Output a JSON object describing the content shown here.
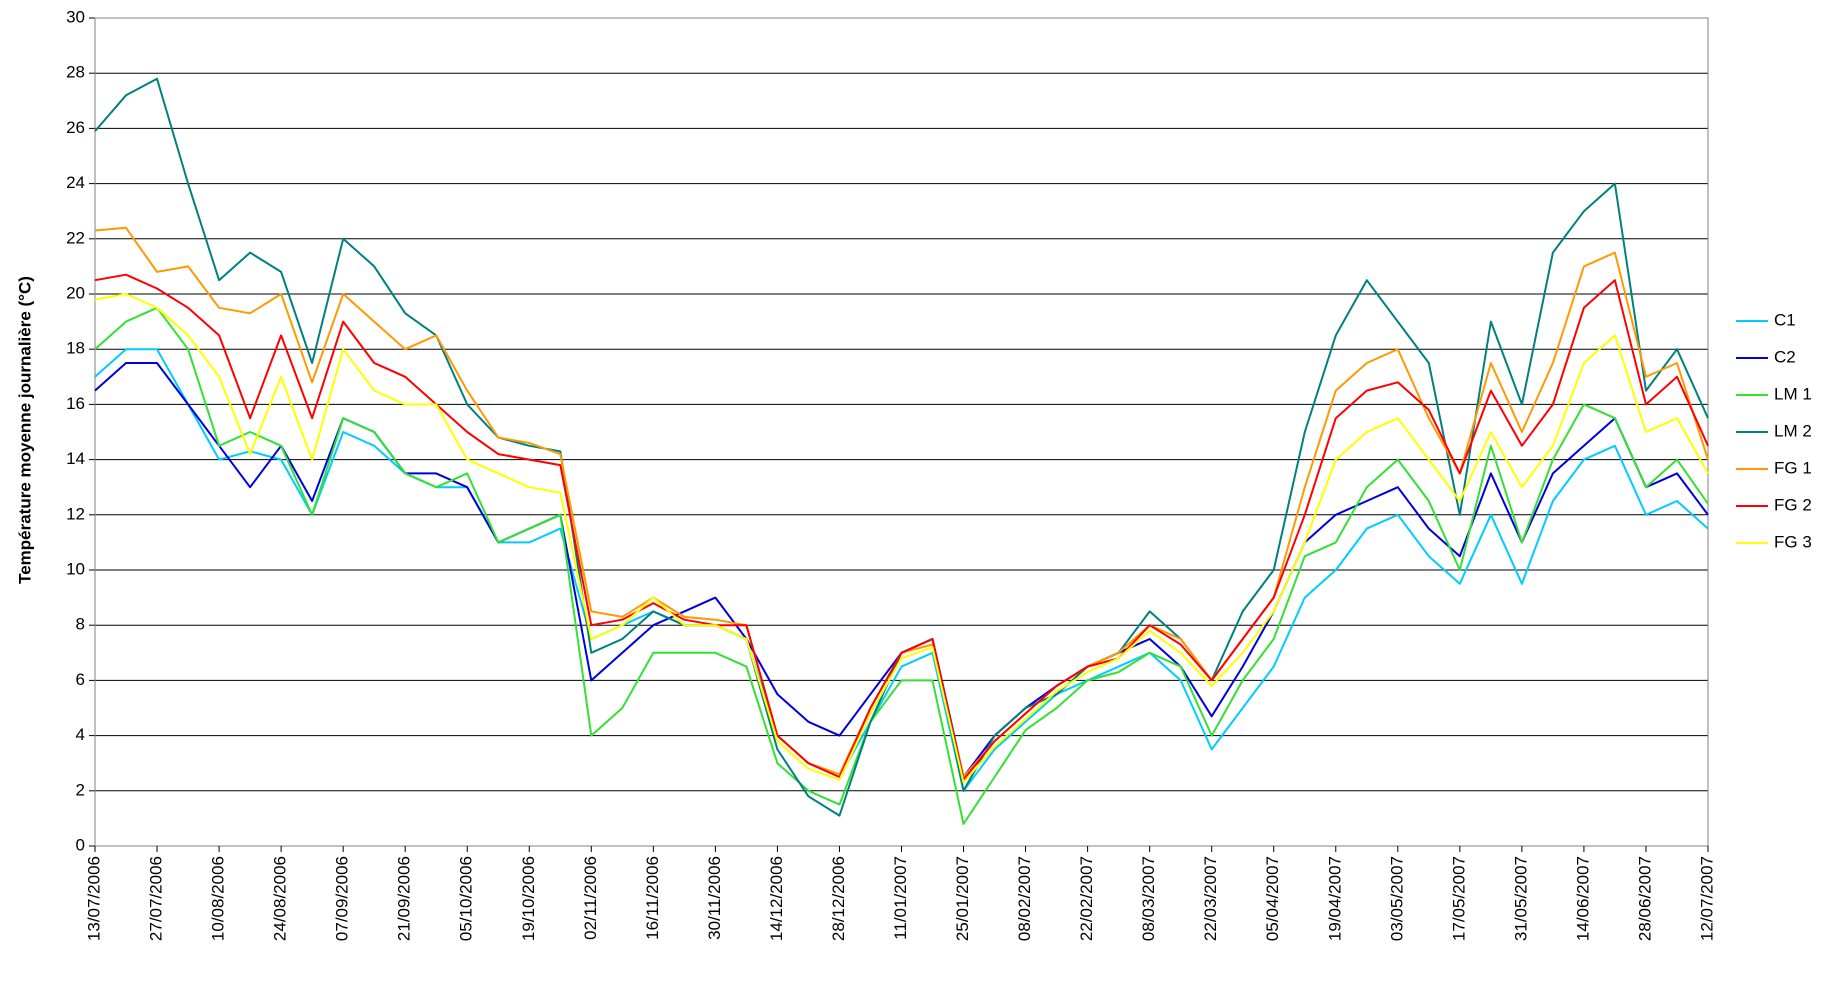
{
  "chart_data": {
    "type": "line",
    "y_label": "Température moyenne journalière (°C)",
    "x": [
      "13/07/2006",
      "20/07/2006",
      "27/07/2006",
      "03/08/2006",
      "10/08/2006",
      "17/08/2006",
      "24/08/2006",
      "31/08/2006",
      "07/09/2006",
      "14/09/2006",
      "21/09/2006",
      "28/09/2006",
      "05/10/2006",
      "12/10/2006",
      "19/10/2006",
      "26/10/2006",
      "02/11/2006",
      "09/11/2006",
      "16/11/2006",
      "23/11/2006",
      "30/11/2006",
      "07/12/2006",
      "14/12/2006",
      "21/12/2006",
      "28/12/2006",
      "04/01/2007",
      "11/01/2007",
      "18/01/2007",
      "25/01/2007",
      "01/02/2007",
      "08/02/2007",
      "15/02/2007",
      "22/02/2007",
      "01/03/2007",
      "08/03/2007",
      "15/03/2007",
      "22/03/2007",
      "29/03/2007",
      "05/04/2007",
      "12/04/2007",
      "19/04/2007",
      "26/04/2007",
      "03/05/2007",
      "10/05/2007",
      "17/05/2007",
      "24/05/2007",
      "31/05/2007",
      "07/06/2007",
      "14/06/2007",
      "21/06/2007",
      "28/06/2007",
      "05/07/2007",
      "12/07/2007"
    ],
    "series": [
      {
        "name": "C1",
        "color": "#00ccff",
        "values": [
          17,
          18,
          18,
          16,
          14,
          14.3,
          14,
          12,
          15,
          14.5,
          13.5,
          13,
          13,
          11,
          11,
          11.5,
          7.5,
          8,
          8.5,
          8,
          8,
          7.5,
          4,
          3,
          2.5,
          4.5,
          6.5,
          7,
          2,
          3.5,
          4.5,
          5.5,
          6,
          6.5,
          7,
          6,
          3.5,
          5,
          6.5,
          9,
          10,
          11.5,
          12,
          10.5,
          9.5,
          12,
          9.5,
          12.5,
          14,
          14.5,
          12,
          12.5,
          11.5
        ]
      },
      {
        "name": "C2",
        "color": "#0000dd",
        "values": [
          16.5,
          17.5,
          17.5,
          16,
          14.5,
          13,
          14.5,
          12.5,
          15.5,
          15,
          13.5,
          13.5,
          13,
          11,
          11.5,
          12,
          6,
          7,
          8,
          8.5,
          9,
          7.5,
          5.5,
          4.5,
          4,
          5.5,
          7,
          7.5,
          2.5,
          4,
          5,
          5.8,
          6.5,
          7,
          7.5,
          6.5,
          4.7,
          6.5,
          8.5,
          11,
          12,
          12.5,
          13,
          11.5,
          10.5,
          13.5,
          11,
          13.5,
          14.5,
          15.5,
          13,
          13.5,
          12
        ]
      },
      {
        "name": "LM 1",
        "color": "#33e033",
        "values": [
          18,
          19,
          19.5,
          18,
          14.5,
          15,
          14.5,
          12,
          15.5,
          15,
          13.5,
          13,
          13.5,
          11,
          11.5,
          12,
          4,
          5,
          7,
          7,
          7,
          6.5,
          3,
          2,
          1.5,
          4.5,
          6,
          6,
          0.8,
          2.5,
          4.2,
          5,
          6,
          6.3,
          7,
          6.5,
          4,
          6,
          7.5,
          10.5,
          11,
          13,
          14,
          12.5,
          10,
          14.5,
          11,
          14,
          16,
          15.5,
          13,
          14,
          12.4
        ]
      },
      {
        "name": "LM 2",
        "color": "#008080",
        "values": [
          25.9,
          27.2,
          27.8,
          24,
          20.5,
          21.5,
          20.8,
          17.5,
          22,
          21,
          19.3,
          18.5,
          16,
          14.8,
          14.5,
          14.3,
          7,
          7.5,
          8.5,
          8,
          8,
          7.5,
          3.5,
          1.8,
          1.1,
          4.5,
          7,
          7.5,
          2,
          4,
          5,
          5.5,
          6.5,
          7,
          8.5,
          7.5,
          6,
          8.5,
          10,
          15,
          18.5,
          20.5,
          19,
          17.5,
          12,
          19,
          16,
          21.5,
          23,
          24,
          16.5,
          18,
          15.5
        ]
      },
      {
        "name": "FG 1",
        "color": "#ff9900",
        "values": [
          22.3,
          22.4,
          20.8,
          21,
          19.5,
          19.3,
          20,
          16.8,
          20,
          19,
          18,
          18.5,
          16.5,
          14.8,
          14.6,
          14.2,
          8.5,
          8.3,
          9,
          8.3,
          8.2,
          8,
          4,
          3,
          2.6,
          5,
          7,
          7.3,
          2.5,
          3.8,
          4.8,
          5.8,
          6.5,
          7,
          8,
          7.5,
          6,
          7.5,
          9,
          13,
          16.5,
          17.5,
          18,
          15.5,
          13.5,
          17.5,
          15,
          17.5,
          21,
          21.5,
          17,
          17.5,
          14
        ]
      },
      {
        "name": "FG 2",
        "color": "#ff0000",
        "values": [
          20.5,
          20.7,
          20.2,
          19.5,
          18.5,
          15.5,
          18.5,
          15.5,
          19,
          17.5,
          17,
          16,
          15,
          14.2,
          14,
          13.8,
          8,
          8.2,
          8.8,
          8.2,
          8,
          8,
          4,
          3,
          2.5,
          5,
          7,
          7.5,
          2.4,
          3.8,
          4.8,
          5.8,
          6.5,
          6.8,
          8,
          7.3,
          6,
          7.5,
          9,
          12,
          15.5,
          16.5,
          16.8,
          15.8,
          13.5,
          16.5,
          14.5,
          16,
          19.5,
          20.5,
          16,
          17,
          14.5
        ]
      },
      {
        "name": "FG 3",
        "color": "#ffff00",
        "values": [
          19.8,
          20,
          19.5,
          18.5,
          17,
          14.2,
          17,
          14,
          18,
          16.5,
          16,
          16,
          14,
          13.5,
          13,
          12.8,
          7.5,
          8,
          9,
          8,
          8,
          7.5,
          3.8,
          2.8,
          2.4,
          4.8,
          6.8,
          7.2,
          2.3,
          3.6,
          4.6,
          5.6,
          6.3,
          6.8,
          7.8,
          7,
          5.8,
          7,
          8.5,
          11,
          14,
          15,
          15.5,
          14,
          12.5,
          15,
          13,
          14.5,
          17.5,
          18.5,
          15,
          15.5,
          13.5
        ]
      }
    ],
    "xlim": [
      "13/07/2006",
      "12/07/2007"
    ],
    "xticks": [
      "13/07/2006",
      "27/07/2006",
      "10/08/2006",
      "24/08/2006",
      "07/09/2006",
      "21/09/2006",
      "05/10/2006",
      "19/10/2006",
      "02/11/2006",
      "16/11/2006",
      "30/11/2006",
      "14/12/2006",
      "28/12/2006",
      "11/01/2007",
      "25/01/2007",
      "08/02/2007",
      "22/02/2007",
      "08/03/2007",
      "22/03/2007",
      "05/04/2007",
      "19/04/2007",
      "03/05/2007",
      "17/05/2007",
      "31/05/2007",
      "14/06/2007",
      "28/06/2007",
      "12/07/2007"
    ],
    "ylim": [
      0,
      30
    ],
    "yticks": [
      0,
      2,
      4,
      6,
      8,
      10,
      12,
      14,
      16,
      18,
      20,
      22,
      24,
      26,
      28,
      30
    ],
    "grid": true,
    "legend": "right"
  }
}
